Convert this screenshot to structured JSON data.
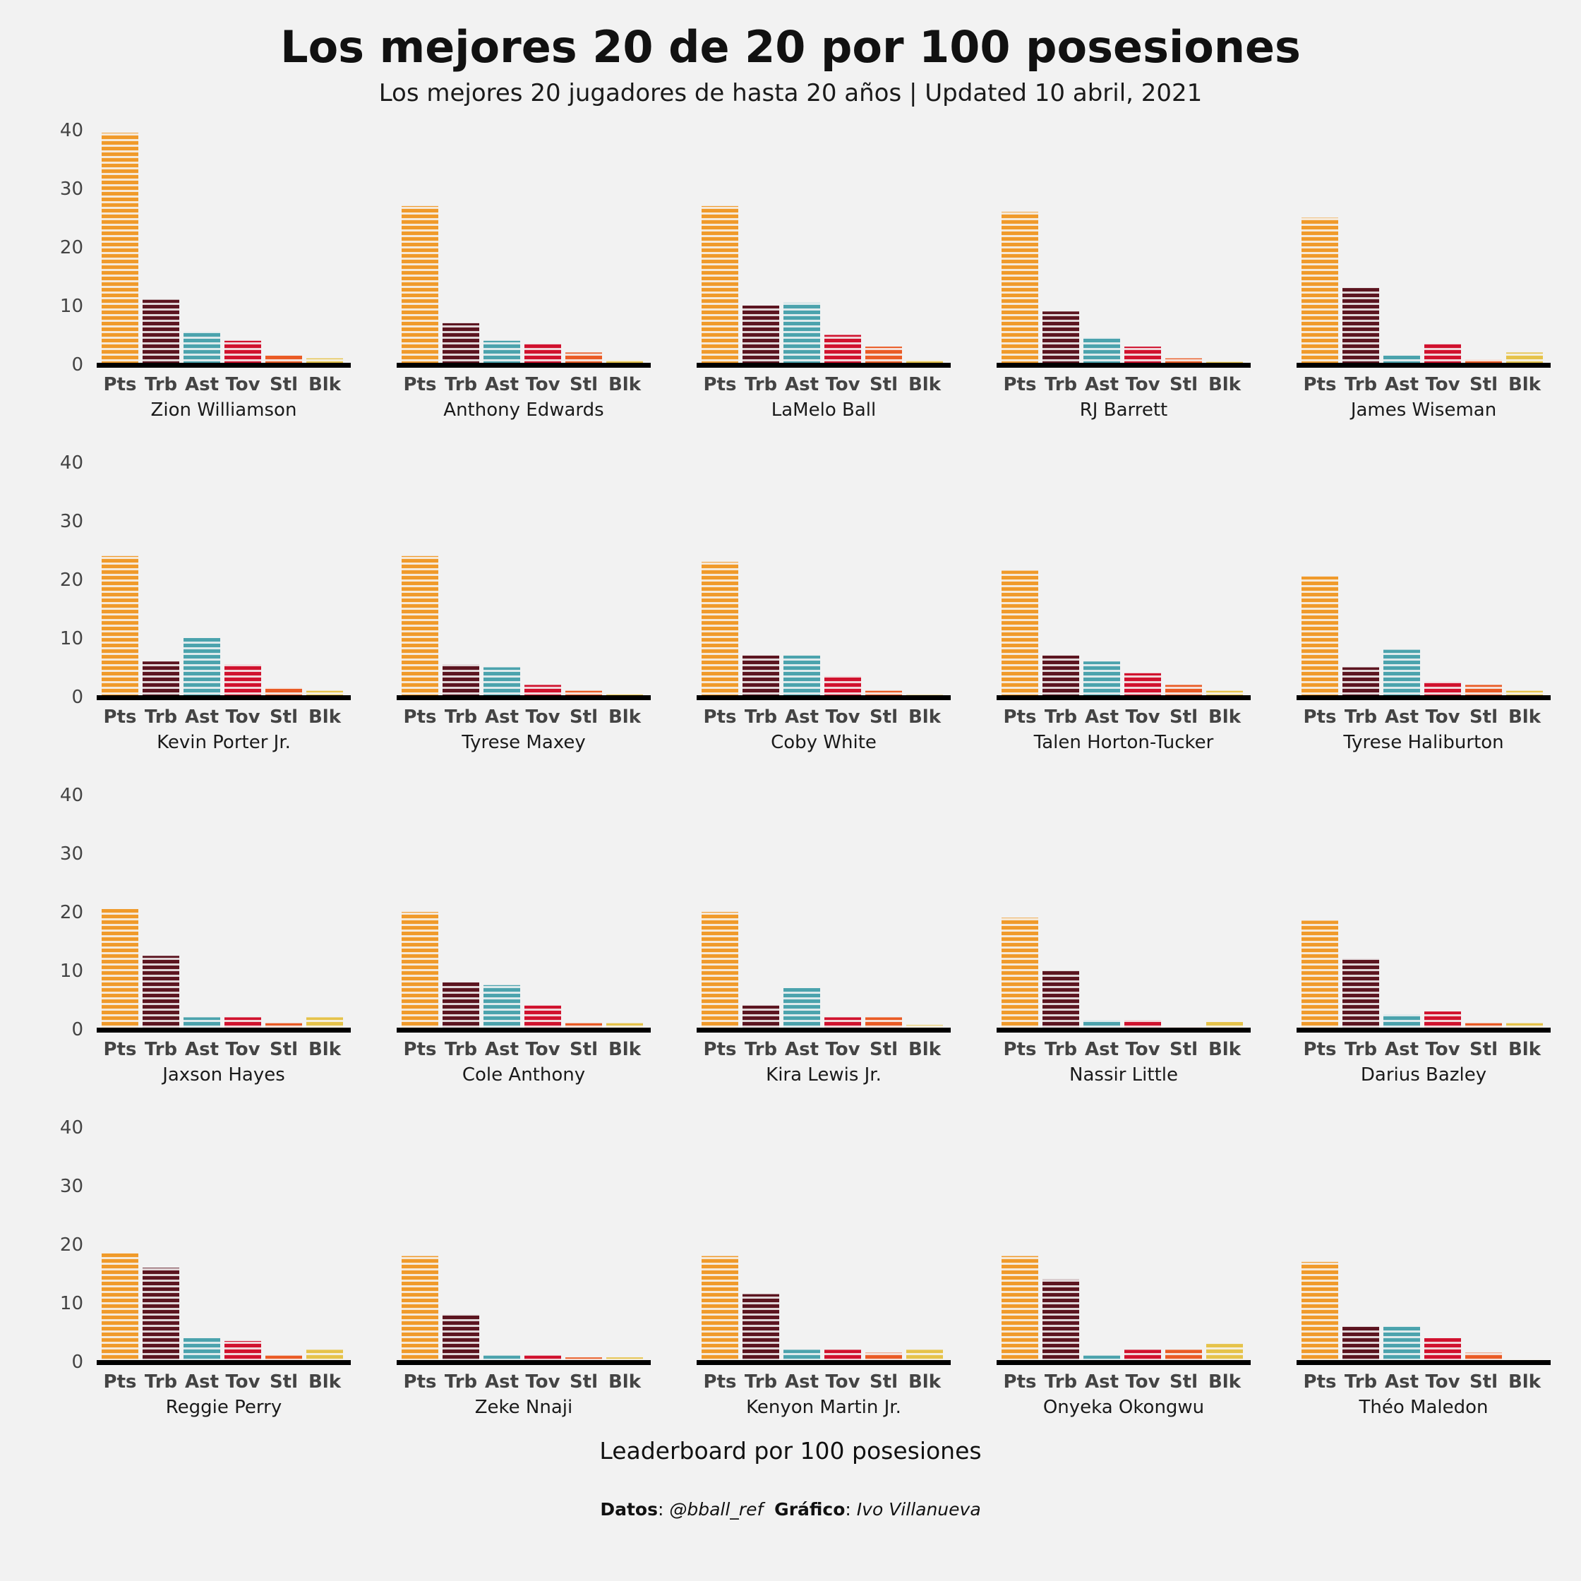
{
  "colors": {
    "background": "#f2f2f2",
    "Pts": "#f09a2a",
    "Trb": "#5c1520",
    "Ast": "#4ba3ad",
    "Tov": "#d1122e",
    "Stl": "#ea5b25",
    "Blk": "#e6c34a",
    "baseline": "#000000"
  },
  "chart_data": {
    "type": "bar",
    "title": "Los mejores 20 de 20 por 100 posesiones",
    "subtitle": "Los mejores 20 jugadores de hasta 20 años | Updated 10 abril, 2021",
    "xlabel": "Leaderboard por 100 posesiones",
    "ylabel": "",
    "ylim": [
      0,
      40
    ],
    "yticks": [
      "0",
      "10",
      "20",
      "30",
      "40"
    ],
    "grid": false,
    "categories": [
      "Pts",
      "Trb",
      "Ast",
      "Tov",
      "Stl",
      "Blk"
    ],
    "facets": [
      {
        "name": "Zion Williamson",
        "values": [
          39.5,
          11,
          5.5,
          4,
          1.5,
          1
        ]
      },
      {
        "name": "Anthony Edwards",
        "values": [
          27,
          7,
          4,
          3.5,
          2,
          0.7
        ]
      },
      {
        "name": "LaMelo Ball",
        "values": [
          27,
          10,
          10.5,
          5,
          3,
          0.7
        ]
      },
      {
        "name": "RJ Barrett",
        "values": [
          26,
          9,
          4.5,
          3,
          1,
          0.4
        ]
      },
      {
        "name": "James Wiseman",
        "values": [
          25,
          13,
          1.5,
          3.5,
          0.8,
          2
        ]
      },
      {
        "name": "Kevin Porter Jr.",
        "values": [
          24,
          6,
          10,
          5.5,
          1.5,
          1
        ]
      },
      {
        "name": "Tyrese Maxey",
        "values": [
          24,
          5.5,
          5,
          2,
          1,
          0.4
        ]
      },
      {
        "name": "Coby White",
        "values": [
          23,
          7,
          7,
          3.5,
          1,
          0.3
        ]
      },
      {
        "name": "Talen Horton-Tucker",
        "values": [
          21.5,
          7,
          6,
          4,
          2,
          1
        ]
      },
      {
        "name": "Tyrese Haliburton",
        "values": [
          20.5,
          5,
          8,
          2.5,
          2,
          1
        ]
      },
      {
        "name": "Jaxson Hayes",
        "values": [
          20.5,
          12.5,
          2,
          2,
          1,
          2
        ]
      },
      {
        "name": "Cole Anthony",
        "values": [
          20,
          8,
          7.5,
          4,
          1,
          1
        ]
      },
      {
        "name": "Kira Lewis Jr.",
        "values": [
          20,
          4,
          7,
          2,
          2,
          0.7
        ]
      },
      {
        "name": "Nassir Little",
        "values": [
          19,
          10,
          1.5,
          1.5,
          0.3,
          1.2
        ]
      },
      {
        "name": "Darius Bazley",
        "values": [
          18.5,
          12,
          2.5,
          3,
          1,
          1
        ]
      },
      {
        "name": "Reggie Perry",
        "values": [
          18.5,
          16,
          4,
          3.5,
          1,
          2
        ]
      },
      {
        "name": "Zeke Nnaji",
        "values": [
          18,
          8,
          1,
          1,
          0.7,
          0.7
        ]
      },
      {
        "name": "Kenyon Martin Jr.",
        "values": [
          18,
          11.5,
          2,
          2,
          1.5,
          2
        ]
      },
      {
        "name": "Onyeka Okongwu",
        "values": [
          18,
          14,
          1,
          2,
          2,
          3
        ]
      },
      {
        "name": "Théo Maledon",
        "values": [
          17,
          6,
          6,
          4,
          1.5,
          0.3
        ]
      }
    ]
  },
  "caption": {
    "datos_label": "Datos",
    "datos_value": "@bball_ref",
    "grafico_label": "Gráfico",
    "grafico_value": "Ivo Villanueva"
  }
}
